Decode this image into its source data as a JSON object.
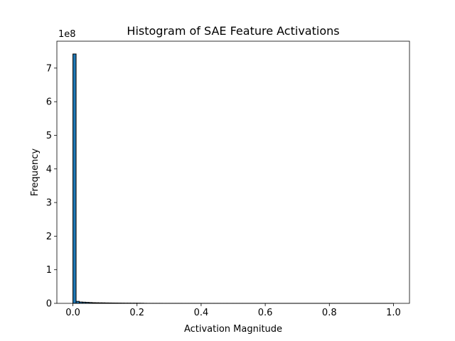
{
  "chart_data": {
    "type": "bar",
    "title": "Histogram of SAE Feature Activations",
    "xlabel": "Activation Magnitude",
    "ylabel": "Frequency",
    "offset_label": "1e8",
    "xlim": [
      -0.05,
      1.05
    ],
    "ylim": [
      0,
      7.8
    ],
    "x_ticks": [
      0.0,
      0.2,
      0.4,
      0.6,
      0.8,
      1.0
    ],
    "x_tick_labels": [
      "0.0",
      "0.2",
      "0.4",
      "0.6",
      "0.8",
      "1.0"
    ],
    "y_ticks": [
      0,
      1,
      2,
      3,
      4,
      5,
      6,
      7
    ],
    "y_tick_labels": [
      "0",
      "1",
      "2",
      "3",
      "4",
      "5",
      "6",
      "7"
    ],
    "y_scale_note": "values in units of 1e8",
    "bar_color": "#1f77b4",
    "edge_color": "#000000",
    "bin_start": 0.0,
    "bin_width": 0.01,
    "values": [
      7.42,
      0.06,
      0.04,
      0.035,
      0.03,
      0.025,
      0.02,
      0.018,
      0.016,
      0.015,
      0.013,
      0.012,
      0.011,
      0.01,
      0.009,
      0.008,
      0.007,
      0.007,
      0.006,
      0.006,
      0.005,
      0.004,
      0.002,
      0.001,
      0.001,
      0.001,
      0.001,
      0.001,
      0.0005,
      0.0005,
      0.0005,
      0.0005,
      0.0005,
      0.0005,
      0.0004,
      0.0004,
      0.0004,
      0.0004,
      0.0003,
      0.0003,
      0.0003,
      0.0003,
      0.0003,
      0.0002,
      0.0002,
      0.0002,
      0.0002,
      0.0002,
      0.0002,
      0.0002,
      0.0002,
      0.0002,
      0.0002,
      0.0001,
      0.0001,
      0.0001,
      0.0001,
      0.0001,
      0.0001,
      0.0001,
      0.0001,
      0.0001,
      0.0001,
      0.0001,
      0.0001,
      0.0001,
      0.0001,
      0.0001,
      0.0001,
      0.0001,
      0.0001,
      0.0001,
      0.0001,
      0.0001,
      0.0001,
      0.0001,
      0.0001,
      0.0001,
      0.0001,
      0.0001,
      0.0001,
      0.0001,
      0.0001,
      0.0001,
      0.0001,
      0.0001,
      0.0001,
      0.0001,
      0.0001,
      0.0001,
      0.0001,
      0.0001,
      0.0001,
      0.0001,
      0.0001,
      0.0001,
      0.0001,
      0.0001,
      0.0001,
      0.0001
    ]
  }
}
